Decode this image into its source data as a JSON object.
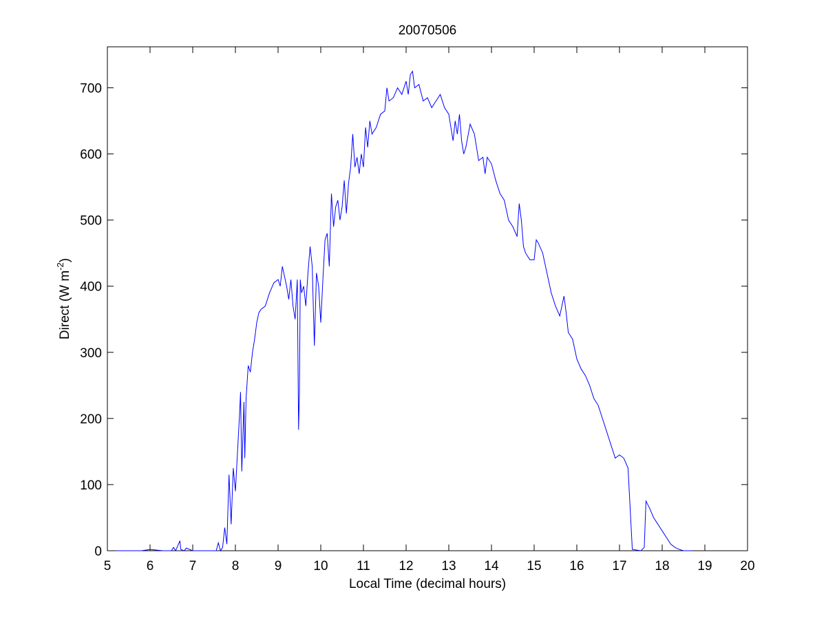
{
  "chart_data": {
    "type": "line",
    "title": "20070506",
    "x_label": "Local Time (decimal hours)",
    "y_label": [
      "Direct (W m",
      "-2",
      ")"
    ],
    "xlim": [
      5,
      20
    ],
    "xticks": [
      5,
      6,
      7,
      8,
      9,
      10,
      11,
      12,
      13,
      14,
      15,
      16,
      17,
      18,
      19,
      20
    ],
    "ylim": [
      0,
      762
    ],
    "yticks": [
      0,
      100,
      200,
      300,
      400,
      500,
      600,
      700
    ],
    "grid": false,
    "box": true,
    "x": [
      5.2,
      5.8,
      6.0,
      6.3,
      6.5,
      6.55,
      6.6,
      6.7,
      6.72,
      6.8,
      6.85,
      7.0,
      7.55,
      7.6,
      7.65,
      7.7,
      7.75,
      7.8,
      7.85,
      7.9,
      7.95,
      8.0,
      8.05,
      8.1,
      8.12,
      8.15,
      8.2,
      8.22,
      8.25,
      8.3,
      8.35,
      8.4,
      8.45,
      8.5,
      8.55,
      8.6,
      8.7,
      8.8,
      8.9,
      9.0,
      9.05,
      9.1,
      9.15,
      9.2,
      9.25,
      9.3,
      9.35,
      9.4,
      9.45,
      9.48,
      9.5,
      9.52,
      9.55,
      9.6,
      9.65,
      9.7,
      9.75,
      9.8,
      9.85,
      9.9,
      9.95,
      10.0,
      10.05,
      10.1,
      10.15,
      10.2,
      10.25,
      10.3,
      10.35,
      10.4,
      10.45,
      10.5,
      10.55,
      10.6,
      10.65,
      10.7,
      10.75,
      10.8,
      10.85,
      10.9,
      10.95,
      11.0,
      11.05,
      11.1,
      11.15,
      11.2,
      11.3,
      11.4,
      11.5,
      11.55,
      11.6,
      11.7,
      11.8,
      11.9,
      12.0,
      12.05,
      12.1,
      12.15,
      12.2,
      12.3,
      12.4,
      12.5,
      12.6,
      12.7,
      12.8,
      12.9,
      13.0,
      13.1,
      13.15,
      13.2,
      13.25,
      13.3,
      13.35,
      13.4,
      13.5,
      13.6,
      13.65,
      13.7,
      13.8,
      13.85,
      13.9,
      14.0,
      14.1,
      14.2,
      14.3,
      14.4,
      14.5,
      14.6,
      14.65,
      14.7,
      14.75,
      14.8,
      14.9,
      15.0,
      15.05,
      15.1,
      15.2,
      15.3,
      15.4,
      15.5,
      15.6,
      15.7,
      15.75,
      15.8,
      15.9,
      16.0,
      16.1,
      16.2,
      16.3,
      16.4,
      16.5,
      16.6,
      16.7,
      16.8,
      16.9,
      17.0,
      17.1,
      17.2,
      17.3,
      17.5,
      17.58,
      17.62,
      17.7,
      17.8,
      17.9,
      18.0,
      18.1,
      18.2,
      18.3,
      18.4,
      18.5,
      18.7
    ],
    "series": [
      {
        "color": "#0000ff",
        "values": [
          0,
          0,
          2,
          0,
          0,
          5,
          0,
          15,
          2,
          0,
          4,
          0,
          0,
          12,
          0,
          5,
          35,
          10,
          115,
          40,
          125,
          90,
          150,
          210,
          240,
          120,
          225,
          140,
          230,
          280,
          270,
          300,
          320,
          345,
          360,
          365,
          370,
          390,
          405,
          410,
          400,
          430,
          415,
          400,
          380,
          410,
          370,
          350,
          410,
          183,
          240,
          410,
          390,
          400,
          370,
          420,
          460,
          430,
          310,
          420,
          400,
          345,
          410,
          470,
          480,
          430,
          540,
          490,
          520,
          530,
          500,
          520,
          560,
          510,
          555,
          580,
          630,
          580,
          595,
          570,
          600,
          580,
          640,
          610,
          650,
          630,
          640,
          660,
          665,
          700,
          680,
          685,
          700,
          690,
          710,
          690,
          720,
          725,
          700,
          705,
          680,
          685,
          670,
          680,
          690,
          670,
          660,
          620,
          650,
          630,
          660,
          620,
          600,
          610,
          645,
          630,
          610,
          590,
          595,
          570,
          595,
          585,
          560,
          540,
          530,
          500,
          490,
          475,
          525,
          500,
          460,
          450,
          440,
          440,
          470,
          465,
          450,
          420,
          390,
          370,
          355,
          385,
          360,
          330,
          320,
          290,
          275,
          265,
          250,
          230,
          220,
          200,
          180,
          160,
          140,
          145,
          140,
          125,
          2,
          0,
          5,
          75,
          65,
          50,
          40,
          30,
          20,
          10,
          5,
          2,
          0,
          0
        ]
      }
    ]
  }
}
